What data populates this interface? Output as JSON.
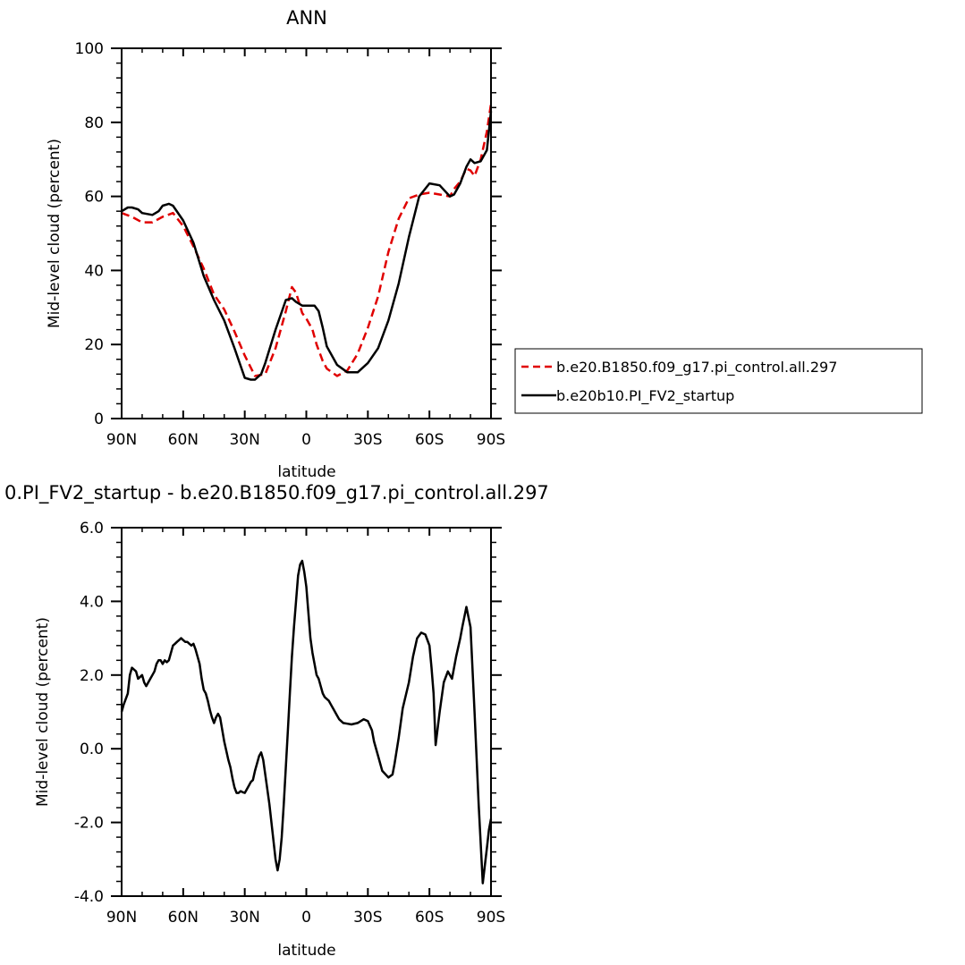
{
  "chart_data": [
    {
      "type": "line",
      "title": "ANN",
      "xlabel": "latitude",
      "ylabel": "Mid-level cloud (percent)",
      "xlim": [
        90,
        -90
      ],
      "ylim": [
        0,
        100
      ],
      "xticks": [
        90,
        60,
        30,
        0,
        -30,
        -60,
        -90
      ],
      "xtick_labels": [
        "90N",
        "60N",
        "30N",
        "0",
        "30S",
        "60S",
        "90S"
      ],
      "yticks": [
        0,
        20,
        40,
        60,
        80,
        100
      ],
      "ytick_labels": [
        "0",
        "20",
        "40",
        "60",
        "80",
        "100"
      ],
      "grid": false,
      "legend_position": "right",
      "series": [
        {
          "name": "b.e20.B1850.f09_g17.pi_control.all.297",
          "color": "#e00000",
          "style": "dashed",
          "x": [
            90,
            85,
            80,
            75,
            70,
            65,
            60,
            55,
            50,
            45,
            40,
            35,
            30,
            25,
            20,
            15,
            10,
            7,
            5,
            2,
            0,
            -3,
            -5,
            -8,
            -10,
            -15,
            -20,
            -25,
            -30,
            -35,
            -40,
            -45,
            -50,
            -55,
            -60,
            -65,
            -70,
            -72,
            -75,
            -78,
            -80,
            -82,
            -85,
            -88,
            -90
          ],
          "y": [
            55.5,
            54.5,
            53,
            53,
            54.5,
            55.5,
            52,
            46.5,
            40.5,
            33.5,
            29.5,
            23.5,
            17,
            11.5,
            12,
            19,
            29,
            35.5,
            34,
            28.5,
            27,
            24,
            20,
            15.5,
            13.5,
            11.5,
            13,
            17.5,
            24.5,
            33,
            45,
            54,
            59.5,
            60.5,
            61,
            60.5,
            60,
            62,
            64,
            67.5,
            67,
            65.5,
            70,
            77.5,
            85
          ]
        },
        {
          "name": "b.e20b10.PI_FV2_startup",
          "color": "#000000",
          "style": "solid",
          "x": [
            90,
            87,
            85,
            82,
            80,
            75,
            72,
            70,
            67,
            65,
            60,
            55,
            50,
            45,
            40,
            35,
            30,
            27,
            25,
            22,
            20,
            15,
            10,
            7,
            5,
            2,
            0,
            -2,
            -4,
            -6,
            -8,
            -10,
            -15,
            -20,
            -25,
            -30,
            -35,
            -40,
            -45,
            -50,
            -55,
            -60,
            -65,
            -70,
            -72,
            -75,
            -78,
            -80,
            -82,
            -85,
            -88,
            -90
          ],
          "y": [
            56,
            57,
            57,
            56.5,
            55.5,
            55,
            56,
            57.5,
            58,
            57.5,
            53.5,
            47.5,
            38.5,
            32,
            26.5,
            19,
            11,
            10.5,
            10.5,
            12,
            15,
            24,
            32,
            32.5,
            31.5,
            30.5,
            30.5,
            30.5,
            30.5,
            29,
            24.5,
            19.5,
            14.5,
            12.5,
            12.5,
            15,
            19,
            26.5,
            36.5,
            49,
            60,
            63.5,
            63,
            60,
            60.5,
            63.5,
            68,
            70,
            69,
            69.5,
            72.5,
            83
          ]
        }
      ]
    },
    {
      "type": "line",
      "title": "0.PI_FV2_startup - b.e20.B1850.f09_g17.pi_control.all.297",
      "xlabel": "latitude",
      "ylabel": "Mid-level cloud (percent)",
      "xlim": [
        90,
        -90
      ],
      "ylim": [
        -4,
        6
      ],
      "xticks": [
        90,
        60,
        30,
        0,
        -30,
        -60,
        -90
      ],
      "xtick_labels": [
        "90N",
        "60N",
        "30N",
        "0",
        "30S",
        "60S",
        "90S"
      ],
      "yticks": [
        -4,
        -2,
        0,
        2,
        4,
        6
      ],
      "ytick_labels": [
        "-4.0",
        "-2.0",
        "0.0",
        "2.0",
        "4.0",
        "6.0"
      ],
      "grid": false,
      "series": [
        {
          "color": "#000000",
          "style": "solid",
          "x": [
            90,
            89,
            87,
            86,
            85,
            83,
            82,
            80,
            79,
            78,
            77,
            76,
            75,
            74,
            73,
            72,
            71,
            70,
            69,
            68,
            67,
            65,
            64,
            63,
            62,
            61,
            60,
            59,
            58,
            57,
            56,
            55,
            54,
            53,
            52,
            51,
            50,
            49,
            48,
            47,
            46,
            45,
            44,
            43,
            42,
            40,
            38,
            37,
            36,
            35,
            34,
            33,
            32,
            31,
            30,
            29,
            28,
            27,
            26,
            25,
            24,
            23,
            22,
            21,
            20,
            18,
            17,
            16,
            15,
            14,
            13,
            12,
            11,
            10,
            9,
            8,
            7,
            6,
            5,
            4,
            3,
            2,
            1,
            0,
            -1,
            -2,
            -3,
            -4,
            -5,
            -6,
            -7,
            -8,
            -9,
            -10,
            -11,
            -12,
            -13,
            -14,
            -15,
            -16,
            -17,
            -18,
            -20,
            -22,
            -25,
            -28,
            -30,
            -32,
            -33,
            -35,
            -37,
            -40,
            -42,
            -43,
            -45,
            -47,
            -50,
            -52,
            -54,
            -56,
            -58,
            -60,
            -61,
            -62,
            -63,
            -65,
            -67,
            -69,
            -71,
            -73,
            -75,
            -76,
            -78,
            -80,
            -82,
            -84,
            -86,
            -88,
            -89,
            -90
          ],
          "y": [
            1.0,
            1.2,
            1.5,
            2.0,
            2.2,
            2.1,
            1.9,
            2.0,
            1.8,
            1.7,
            1.8,
            1.9,
            2.0,
            2.1,
            2.3,
            2.4,
            2.4,
            2.3,
            2.4,
            2.35,
            2.4,
            2.8,
            2.85,
            2.9,
            2.95,
            3.0,
            2.95,
            2.9,
            2.9,
            2.85,
            2.8,
            2.85,
            2.7,
            2.5,
            2.3,
            1.9,
            1.6,
            1.5,
            1.3,
            1.05,
            0.85,
            0.7,
            0.85,
            0.95,
            0.85,
            0.2,
            -0.3,
            -0.5,
            -0.8,
            -1.05,
            -1.2,
            -1.2,
            -1.15,
            -1.18,
            -1.2,
            -1.1,
            -1.0,
            -0.9,
            -0.85,
            -0.6,
            -0.4,
            -0.2,
            -0.1,
            -0.3,
            -0.7,
            -1.5,
            -2.0,
            -2.5,
            -3.0,
            -3.3,
            -3.0,
            -2.4,
            -1.5,
            -0.5,
            0.5,
            1.5,
            2.5,
            3.3,
            4.0,
            4.7,
            5.0,
            5.1,
            4.8,
            4.4,
            3.7,
            3.0,
            2.6,
            2.3,
            2.0,
            1.9,
            1.7,
            1.5,
            1.4,
            1.35,
            1.3,
            1.2,
            1.1,
            1.0,
            0.9,
            0.8,
            0.75,
            0.7,
            0.68,
            0.66,
            0.7,
            0.8,
            0.75,
            0.5,
            0.2,
            -0.2,
            -0.6,
            -0.78,
            -0.7,
            -0.4,
            0.3,
            1.1,
            1.8,
            2.5,
            3.0,
            3.15,
            3.1,
            2.8,
            2.2,
            1.5,
            0.1,
            1.0,
            1.8,
            2.1,
            1.9,
            2.5,
            3.0,
            3.3,
            3.85,
            3.3,
            1.0,
            -1.5,
            -3.65,
            -2.7,
            -2.2,
            -1.9
          ]
        }
      ]
    }
  ]
}
